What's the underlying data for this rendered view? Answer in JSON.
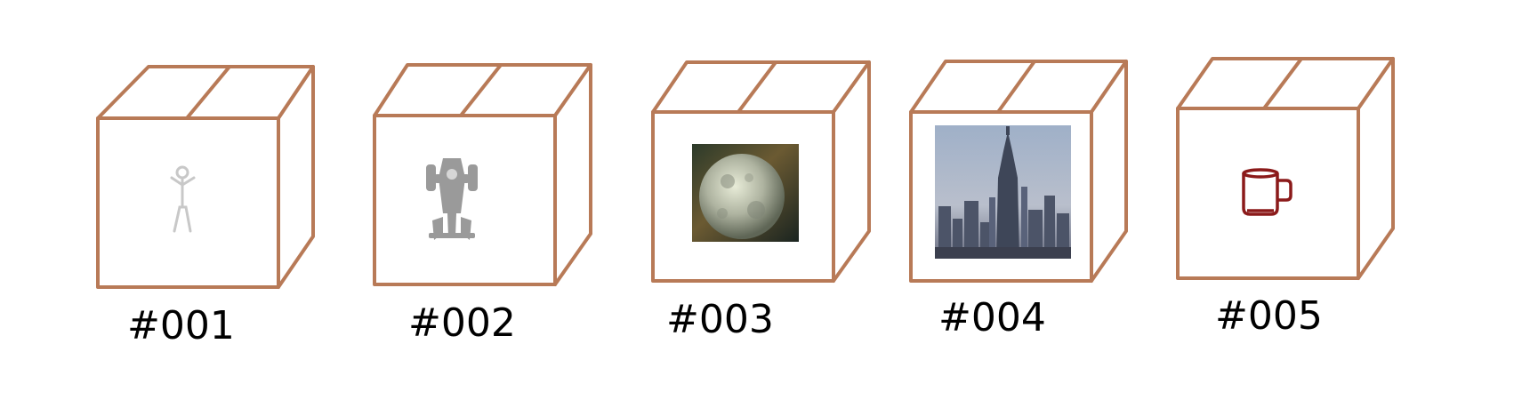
{
  "colors": {
    "box_stroke": "#b87a57",
    "background": "#ffffff",
    "label": "#000000"
  },
  "boxes": [
    {
      "label": "#001",
      "content": "stick-figure-icon",
      "content_color": "#c8c8c8"
    },
    {
      "label": "#002",
      "content": "spaceship-icon",
      "content_color": "#9a9a9a"
    },
    {
      "label": "#003",
      "content": "planet-image",
      "content_color": "#8a8f78"
    },
    {
      "label": "#004",
      "content": "city-skyline-image",
      "content_color": "#5d6a82"
    },
    {
      "label": "#005",
      "content": "mug-icon",
      "content_color": "#8b1a1a"
    }
  ]
}
